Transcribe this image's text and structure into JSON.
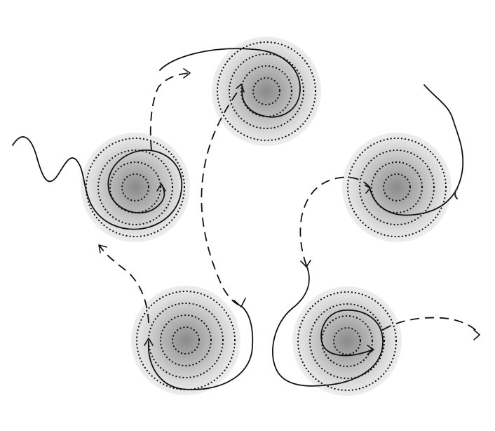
{
  "colors": {
    "background": "#ffffff",
    "line": "#111111",
    "well_center": "#8a8a8a",
    "well_edge": "#eeeeee"
  },
  "wells": [
    {
      "id": "upper-left",
      "rings": 4
    },
    {
      "id": "top-center",
      "rings": 4
    },
    {
      "id": "right",
      "rings": 4
    },
    {
      "id": "bottom-left",
      "rings": 4
    },
    {
      "id": "bottom-right",
      "rings": 4
    }
  ],
  "trajectory_styles": [
    "solid",
    "dashed"
  ]
}
